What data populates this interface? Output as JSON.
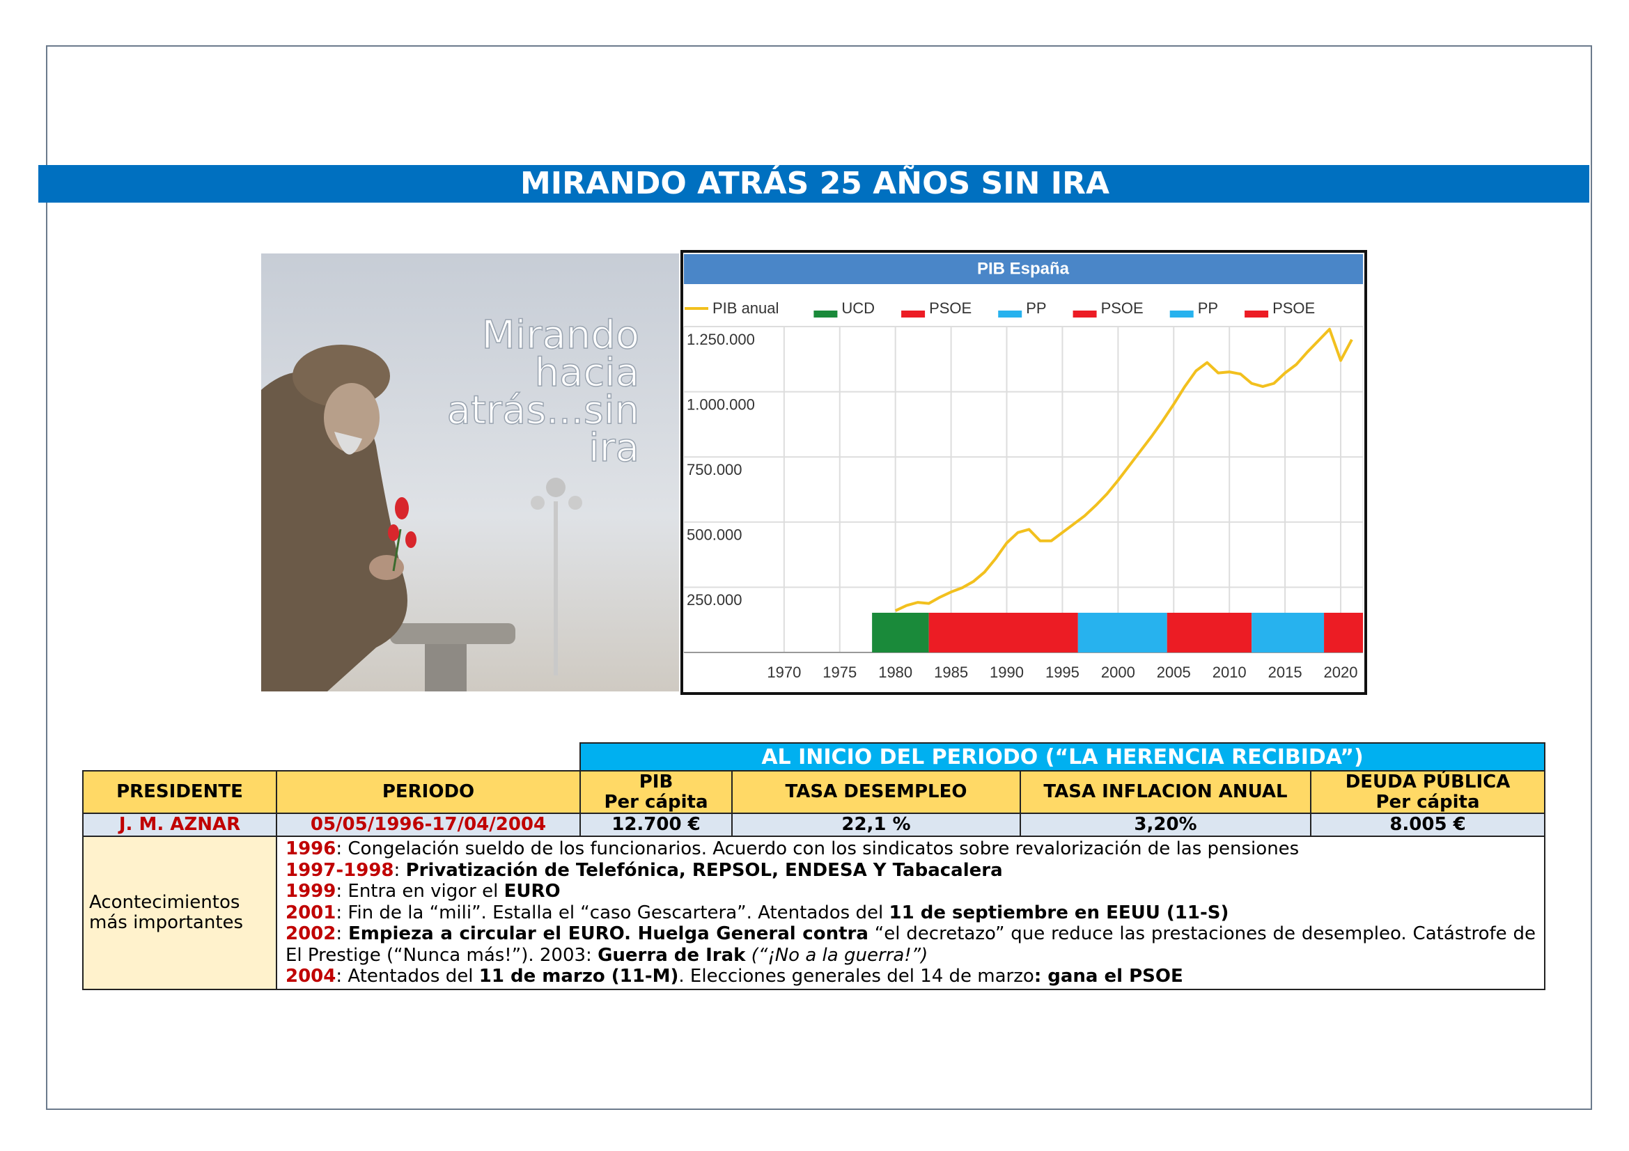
{
  "header": {
    "title": "MIRANDO ATRÁS 25 AÑOS SIN IRA"
  },
  "photo": {
    "caption": [
      "Mirando",
      "hacia",
      "atrás...sin",
      "ira"
    ]
  },
  "chart": {
    "type": "line",
    "title": "PIB España",
    "series": [
      {
        "name": "PIB anual",
        "color": "#f2c01e",
        "x": [
          1980,
          1981,
          1982,
          1983,
          1984,
          1985,
          1986,
          1987,
          1988,
          1989,
          1990,
          1991,
          1992,
          1993,
          1994,
          1995,
          1996,
          1997,
          1998,
          1999,
          2000,
          2001,
          2002,
          2003,
          2004,
          2005,
          2006,
          2007,
          2008,
          2009,
          2010,
          2011,
          2012,
          2013,
          2014,
          2015,
          2016,
          2017,
          2018,
          2019,
          2020,
          2021
        ],
        "values": [
          160000,
          180000,
          192000,
          188000,
          212000,
          232000,
          248000,
          272000,
          308000,
          360000,
          420000,
          460000,
          472000,
          428000,
          428000,
          460000,
          492000,
          524000,
          564000,
          608000,
          660000,
          716000,
          772000,
          828000,
          888000,
          952000,
          1020000,
          1080000,
          1112000,
          1072000,
          1076000,
          1068000,
          1032000,
          1020000,
          1032000,
          1072000,
          1104000,
          1152000,
          1196000,
          1240000,
          1120000,
          1200000
        ]
      }
    ],
    "periods": [
      {
        "name": "UCD",
        "color": "#1a8a3a",
        "start": 1977.9,
        "end": 1983
      },
      {
        "name": "PSOE",
        "color": "#ec1c24",
        "start": 1983,
        "end": 1996.4
      },
      {
        "name": "PP",
        "color": "#27b2ee",
        "start": 1996.4,
        "end": 2004.4
      },
      {
        "name": "PSOE",
        "color": "#ec1c24",
        "start": 2004.4,
        "end": 2012
      },
      {
        "name": "PP",
        "color": "#27b2ee",
        "start": 2012,
        "end": 2018.5
      },
      {
        "name": "PSOE",
        "color": "#ec1c24",
        "start": 2018.5,
        "end": 2022
      }
    ],
    "xlim": [
      1961,
      2022
    ],
    "xticks": [
      1970,
      1975,
      1980,
      1985,
      1990,
      1995,
      2000,
      2005,
      2010,
      2015,
      2020
    ],
    "ylim": [
      0,
      1250000
    ],
    "yticks": [
      {
        "value": 250000,
        "label": "250.000"
      },
      {
        "value": 500000,
        "label": "500.000"
      },
      {
        "value": 750000,
        "label": "750.000"
      },
      {
        "value": 1000000,
        "label": "1.000.000"
      },
      {
        "value": 1250000,
        "label": "1.250.000"
      }
    ],
    "grid": true
  },
  "table": {
    "group_header": "AL INICIO DEL PERIODO (“LA HERENCIA RECIBIDA”)",
    "headers": {
      "presidente": "PRESIDENTE",
      "periodo": "PERIODO",
      "pib": [
        "PIB",
        "Per cápita"
      ],
      "desempleo": "TASA DESEMPLEO",
      "inflacion": "TASA INFLACION ANUAL",
      "deuda": [
        "DEUDA PÚBLICA",
        "Per cápita"
      ]
    },
    "row": {
      "presidente": "J. M. AZNAR",
      "periodo": "05/05/1996-17/04/2004",
      "pib": "12.700 €",
      "desempleo": "22,1 %",
      "inflacion": "3,20%",
      "deuda": "8.005 €"
    },
    "events_label": [
      "Acontecimientos",
      "más importantes"
    ],
    "events": [
      [
        [
          "1996",
          "y"
        ],
        [
          ": Congelación sueldo de los funcionarios. Acuerdo con los sindicatos sobre revalorización de las pensiones",
          "n"
        ]
      ],
      [
        [
          "1997-1998",
          "y"
        ],
        [
          ": ",
          "n"
        ],
        [
          "Privatización de Telefónica, REPSOL, ENDESA Y Tabacalera",
          "b"
        ]
      ],
      [
        [
          "1999",
          "y"
        ],
        [
          ": Entra en vigor el ",
          "n"
        ],
        [
          "EURO",
          "b"
        ]
      ],
      [
        [
          "2001",
          "y"
        ],
        [
          ": Fin de la “mili”. Estalla el “caso Gescartera”. Atentados del ",
          "n"
        ],
        [
          "11 de septiembre en EEUU (11-S)",
          "b"
        ]
      ],
      [
        [
          "2002",
          "y"
        ],
        [
          ": ",
          "n"
        ],
        [
          "Empieza a circular el EURO. Huelga General contra",
          "b"
        ],
        [
          " “el decretazo” que reduce las prestaciones de desempleo. Catástrofe de El Prestige (“Nunca más!”). 2003: ",
          "n"
        ],
        [
          "Guerra de Irak",
          "b"
        ],
        [
          " (“¡No a la guerra!”)",
          "i"
        ]
      ],
      [
        [
          "2004",
          "y"
        ],
        [
          ": Atentados del ",
          "n"
        ],
        [
          "11 de marzo (11-M)",
          "b"
        ],
        [
          ". Elecciones generales del 14 de marzo",
          "n"
        ],
        [
          ": gana el PSOE",
          "b"
        ]
      ]
    ]
  }
}
